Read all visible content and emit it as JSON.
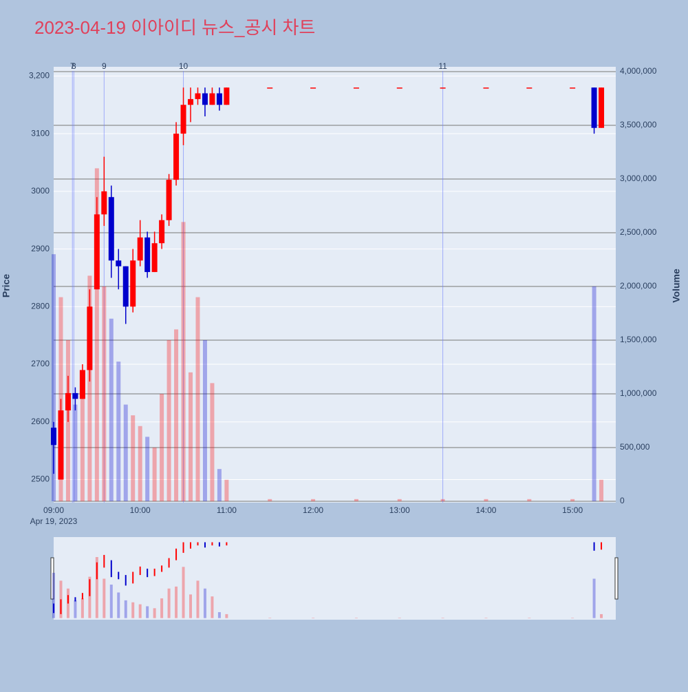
{
  "chart_data": {
    "type": "candlestick",
    "title": "2023-04-19 이아이디 뉴스_공시 차트",
    "y_label": "Price",
    "y2_label": "Volume",
    "x_sublabel": "Apr 19, 2023",
    "x": [
      "09:00",
      "09:05",
      "09:10",
      "09:15",
      "09:20",
      "09:25",
      "09:30",
      "09:35",
      "09:40",
      "09:45",
      "09:50",
      "09:55",
      "10:00",
      "10:05",
      "10:10",
      "10:15",
      "10:20",
      "10:25",
      "10:30",
      "10:35",
      "10:40",
      "10:45",
      "10:50",
      "10:55",
      "11:00",
      "11:30",
      "12:00",
      "12:30",
      "13:00",
      "13:30",
      "14:00",
      "14:30",
      "15:00",
      "15:15",
      "15:20"
    ],
    "open": [
      2590,
      2500,
      2620,
      2650,
      2640,
      2690,
      2830,
      2960,
      2990,
      2880,
      2870,
      2800,
      2880,
      2920,
      2860,
      2910,
      2950,
      3020,
      3100,
      3150,
      3160,
      3170,
      3150,
      3170,
      3150,
      3180,
      3180,
      3180,
      3180,
      3180,
      3180,
      3180,
      3180,
      3180,
      3110
    ],
    "high": [
      2600,
      2640,
      2680,
      2660,
      2700,
      2830,
      2990,
      3060,
      3010,
      2900,
      2870,
      2900,
      2950,
      2930,
      2930,
      2960,
      3030,
      3120,
      3180,
      3180,
      3180,
      3180,
      3180,
      3180,
      3180,
      3180,
      3180,
      3180,
      3180,
      3180,
      3180,
      3180,
      3180,
      3180,
      3180
    ],
    "low": [
      2510,
      2500,
      2600,
      2620,
      2640,
      2670,
      2830,
      2940,
      2850,
      2830,
      2770,
      2790,
      2870,
      2850,
      2860,
      2900,
      2940,
      3010,
      3080,
      3120,
      3150,
      3130,
      3150,
      3140,
      3150,
      3180,
      3180,
      3180,
      3180,
      3180,
      3180,
      3180,
      3180,
      3100,
      3110
    ],
    "close": [
      2560,
      2620,
      2650,
      2640,
      2690,
      2800,
      2960,
      3000,
      2880,
      2870,
      2800,
      2880,
      2920,
      2860,
      2910,
      2950,
      3020,
      3100,
      3150,
      3160,
      3170,
      3150,
      3170,
      3150,
      3180,
      3180,
      3180,
      3180,
      3180,
      3180,
      3180,
      3180,
      3180,
      3110,
      3180
    ],
    "volume": [
      2300000,
      1900000,
      1500000,
      900000,
      1000000,
      2100000,
      3100000,
      2000000,
      1700000,
      1300000,
      900000,
      800000,
      700000,
      600000,
      500000,
      1000000,
      1500000,
      1600000,
      2600000,
      1200000,
      1900000,
      1500000,
      1100000,
      300000,
      200000,
      20000,
      20000,
      20000,
      20000,
      20000,
      20000,
      20000,
      20000,
      2000000,
      200000
    ],
    "increasing_color": "#ff0000",
    "decreasing_color": "#0000cc",
    "xlim": [
      "09:00",
      "15:30"
    ],
    "xticks": [
      "09:00",
      "10:00",
      "11:00",
      "12:00",
      "13:00",
      "14:00",
      "15:00"
    ],
    "ylim": [
      2460,
      3216
    ],
    "yticks": [
      2500,
      2600,
      2700,
      2800,
      2900,
      3000,
      3100,
      {
        "value": 3200,
        "label": "3,200"
      }
    ],
    "y2lim": [
      -13000,
      4045000
    ],
    "y2ticks": [
      0,
      {
        "value": 500000,
        "label": "500,000"
      },
      {
        "value": 1000000,
        "label": "1,000,000"
      },
      {
        "value": 1500000,
        "label": "1,500,000"
      },
      {
        "value": 2000000,
        "label": "2,000,000"
      },
      {
        "value": 2500000,
        "label": "2,500,000"
      },
      {
        "value": 3000000,
        "label": "3,000,000"
      },
      {
        "value": 3500000,
        "label": "3,500,000"
      },
      {
        "value": 4000000,
        "label": "4,000,000"
      }
    ],
    "news": [
      {
        "x": "09:13",
        "label": "7"
      },
      {
        "x": "09:14",
        "label": "8"
      },
      {
        "x": "09:35",
        "label": "9"
      },
      {
        "x": "10:30",
        "label": "10"
      },
      {
        "x": "13:30",
        "label": "11"
      }
    ],
    "grid": true
  }
}
